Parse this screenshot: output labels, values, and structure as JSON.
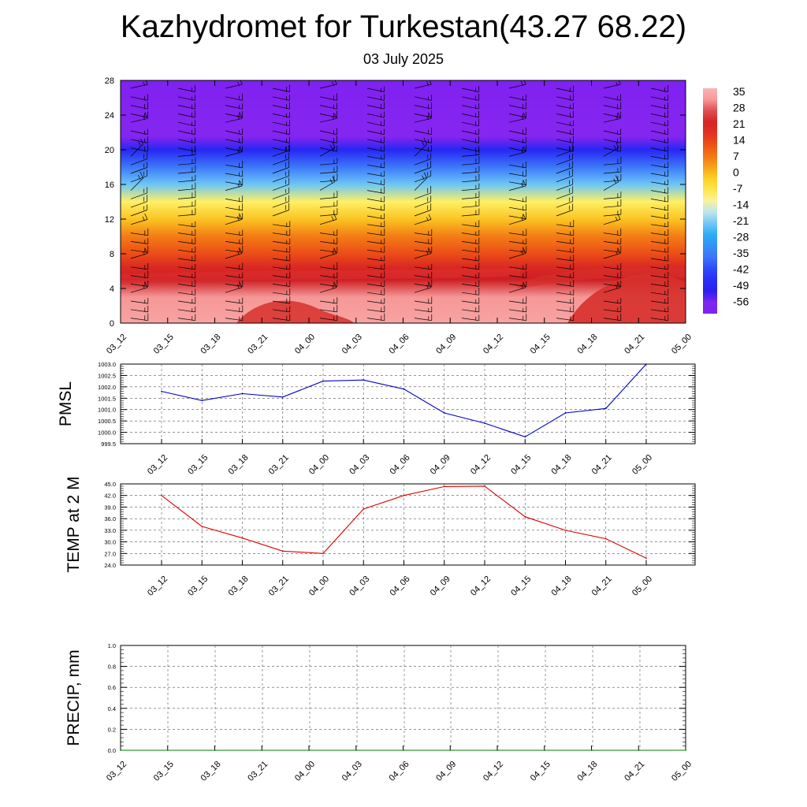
{
  "header": {
    "title": "Kazhydromet for Turkestan(43.27 68.22)",
    "subtitle": "03 July 2025"
  },
  "chart_data": [
    {
      "type": "heatmap",
      "title": "Kazhydromet for Turkestan(43.27 68.22)",
      "subtitle": "03 July 2025",
      "x_ticks": [
        "03_12",
        "03_15",
        "03_18",
        "03_21",
        "04_00",
        "04_03",
        "04_06",
        "04_09",
        "04_12",
        "04_15",
        "04_18",
        "04_21",
        "05_00"
      ],
      "y_ticks": [
        0,
        4,
        8,
        12,
        16,
        20,
        24,
        28
      ],
      "ylim": [
        0,
        28
      ],
      "colorbar_labels": [
        "35",
        "28",
        "21",
        "14",
        "7",
        "0",
        "-7",
        "-14",
        "-21",
        "-28",
        "-35",
        "-42",
        "-49",
        "-56"
      ],
      "colorbar_range": [
        -60,
        38
      ],
      "temperature_by_height": [
        {
          "h": 0,
          "t": 35
        },
        {
          "h": 3,
          "t": 33
        },
        {
          "h": 5,
          "t": 26
        },
        {
          "h": 6.5,
          "t": 21
        },
        {
          "h": 8,
          "t": 14
        },
        {
          "h": 10,
          "t": 8
        },
        {
          "h": 12,
          "t": 0
        },
        {
          "h": 14,
          "t": -9
        },
        {
          "h": 16,
          "t": -21
        },
        {
          "h": 18,
          "t": -35
        },
        {
          "h": 20,
          "t": -48
        },
        {
          "h": 21.5,
          "t": -58
        },
        {
          "h": 23,
          "t": -58
        },
        {
          "h": 28,
          "t": -60
        }
      ],
      "wind_barbs": true,
      "colors": {
        "warm": "#f9a9a9",
        "hot": "#d7302c",
        "orange": "#f2700d",
        "yellow": "#fde84c",
        "cyan": "#2ba8f0",
        "blue": "#2020f0",
        "violet": "#8a2cf0"
      }
    },
    {
      "type": "line",
      "ylabel": "PMSL",
      "categories": [
        "03_12",
        "03_15",
        "03_18",
        "03_21",
        "04_00",
        "04_03",
        "04_06",
        "04_09",
        "04_12",
        "04_15",
        "04_18",
        "04_21",
        "05_00"
      ],
      "values": [
        1001.8,
        1001.4,
        1001.7,
        1001.55,
        1002.25,
        1002.3,
        1001.9,
        1000.85,
        1000.4,
        999.8,
        1000.85,
        1001.05,
        1003.0
      ],
      "ylim": [
        999.5,
        1003.0
      ],
      "y_ticks": [
        "999.5",
        "1000.0",
        "1000.5",
        "1001.0",
        "1001.5",
        "1002.0",
        "1002.5",
        "1003.0"
      ],
      "grid": true,
      "color": "#0000cc"
    },
    {
      "type": "line",
      "ylabel": "TEMP at 2 M",
      "categories": [
        "03_12",
        "03_15",
        "03_18",
        "03_21",
        "04_00",
        "04_03",
        "04_06",
        "04_09",
        "04_12",
        "04_15",
        "04_18",
        "04_21",
        "05_00"
      ],
      "values": [
        42.0,
        34.0,
        31.0,
        27.6,
        27.0,
        38.5,
        42.0,
        44.3,
        44.4,
        36.5,
        33.0,
        30.8,
        25.8
      ],
      "ylim": [
        24.0,
        45.0
      ],
      "y_ticks": [
        "24.0",
        "27.0",
        "30.0",
        "33.0",
        "36.0",
        "39.0",
        "42.0",
        "45.0"
      ],
      "grid": true,
      "color": "#e00000"
    },
    {
      "type": "line",
      "ylabel": "PRECIP, mm",
      "categories": [
        "03_12",
        "03_15",
        "03_18",
        "03_21",
        "04_00",
        "04_03",
        "04_06",
        "04_09",
        "04_12",
        "04_15",
        "04_18",
        "04_21",
        "05_00"
      ],
      "values": [
        0,
        0,
        0,
        0,
        0,
        0,
        0,
        0,
        0,
        0,
        0,
        0,
        0
      ],
      "ylim": [
        0.0,
        1.0
      ],
      "y_ticks": [
        "0.0",
        "0.2",
        "0.4",
        "0.6",
        "0.8",
        "1.0"
      ],
      "grid": true,
      "color": "#008000"
    }
  ]
}
